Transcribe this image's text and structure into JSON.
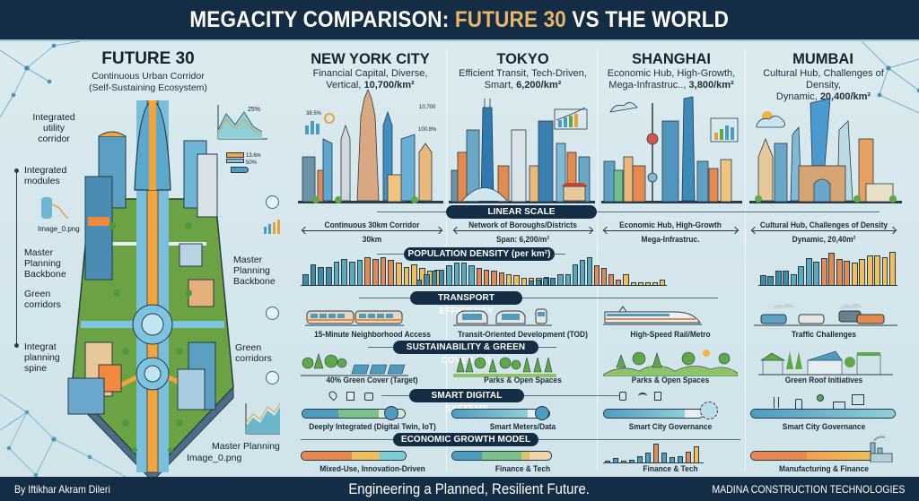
{
  "header": {
    "title_prefix": "MEGACITY COMPARISON: ",
    "title_accent": "FUTURE 30",
    "title_suffix": " VS THE WORLD"
  },
  "future30": {
    "title": "FUTURE 30",
    "subtitle_line1": "Continuous Urban Corridor",
    "subtitle_line2": "(Self-Sustaining Ecosystem)",
    "callouts": {
      "utility": [
        "Integrated",
        "utility",
        "corridor"
      ],
      "modules": [
        "Integrated",
        "modules"
      ],
      "image_label_1": "Image_0.png",
      "backbone_left": [
        "Master",
        "Planning",
        "Backbone"
      ],
      "green_left": [
        "Green",
        "corridors"
      ],
      "spine": [
        "Integrat",
        "planning",
        "spine"
      ],
      "backbone_right": [
        "Master",
        "Planning",
        "Backbone"
      ],
      "green_right": [
        "Green",
        "corridors"
      ],
      "master_planning": "Master Planning",
      "image_label_2": "Image_0.png"
    },
    "mini_chart_labels": {
      "pct": "25%",
      "dist": "13.6m",
      "val": "50%"
    }
  },
  "cities": [
    {
      "name": "NEW YORK CITY",
      "desc_line1": "Financial Capital, Diverse,",
      "desc_line2_text": "Vertical, ",
      "density": "10,700/km²",
      "annotations": [
        "38.5%",
        "10,700",
        "100.8%"
      ]
    },
    {
      "name": "TOKYO",
      "desc_line1": "Efficient Transit, Tech-Driven,",
      "desc_line2_text": "Smart, ",
      "density": "6,200/km²"
    },
    {
      "name": "SHANGHAI",
      "desc_line1": "Economic Hub, High-Growth,",
      "desc_line2_text": "Mega-Infrastruc.., ",
      "density": "3,800/km²"
    },
    {
      "name": "MUMBAI",
      "desc_line1": "Cultural Hub, Challenges of Density,",
      "desc_line2_text": "Dynamic, ",
      "density": "20,400/km²"
    }
  ],
  "sections": {
    "linear_scale": {
      "title": "LINEAR SCALE",
      "cells": [
        {
          "top": "Continuous 30km Corridor",
          "bottom": "30km"
        },
        {
          "top": "Network of Boroughs/Districts",
          "bottom": "Span: 6,200/m²"
        },
        {
          "top": "Economic Hub, High-Growth",
          "bottom": "Mega-Infrastruc."
        },
        {
          "top": "Cultural Hub, Challenges of Density",
          "bottom": "Dynamic, 20,40m²"
        }
      ]
    },
    "population_density": {
      "title": "POPULATION DENSITY (per km²)"
    },
    "transport": {
      "title": "TRANSPORT EFFICIENCY",
      "labels": [
        "15-Minute Neighborhood Access",
        "Transit-Oriented Development (TOD)",
        "High-Speed Rail/Metro",
        "Traffic Challenges"
      ]
    },
    "sustainability": {
      "title": "SUSTAINABILITY & GREEN COVER (%)",
      "labels": [
        "40% Green Cover (Target)",
        "Parks & Open Spaces",
        "Parks & Open Spaces",
        "Green Roof Initiatives"
      ]
    },
    "smart": {
      "title": "SMART DIGITAL SYSTEMS",
      "labels": [
        "Deeply Integrated (Digital Twin, IoT)",
        "Smart Meters/Data",
        "Smart City Governance",
        "Smart City Governance"
      ]
    },
    "economic": {
      "title": "ECONOMIC GROWTH MODEL",
      "labels": [
        "Mixed-Use, Innovation-Driven",
        "Finance & Tech",
        "Finance & Tech",
        "Manufacturing & Finance"
      ]
    }
  },
  "chart_data": {
    "type": "bar",
    "title": "POPULATION DENSITY (per km²)",
    "series": [
      {
        "name": "New York City",
        "values": [
          8,
          15,
          13,
          13,
          17,
          19,
          17,
          18,
          20,
          19,
          20,
          18,
          16,
          13,
          15,
          12,
          10,
          11
        ]
      },
      {
        "name": "Tokyo",
        "values": [
          4,
          8,
          10,
          11,
          14,
          16,
          16,
          14,
          12,
          11,
          10,
          9,
          8,
          7,
          5,
          5,
          5,
          6
        ]
      },
      {
        "name": "Shanghai",
        "values": [
          3,
          4,
          5,
          5,
          8,
          8,
          15,
          18,
          20,
          14,
          12,
          8,
          4,
          8,
          2,
          2,
          2,
          2,
          4
        ]
      },
      {
        "name": "Mumbai",
        "values": [
          11,
          10,
          16,
          16,
          12,
          20,
          29,
          25,
          29,
          35,
          28,
          26,
          24,
          28,
          32,
          32,
          30,
          36
        ]
      }
    ],
    "economic_bars_shanghai": [
      2,
      6,
      3,
      4,
      9,
      14,
      26,
      14,
      7,
      9,
      15,
      22
    ]
  },
  "footer": {
    "author": "By Iftikhar Akram Dileri",
    "tagline": "Engineering a Planned, Resilient Future.",
    "company": "MADINA CONSTRUCTION TECHNOLOGIES"
  },
  "colors": {
    "navy": "#142d44",
    "accent_gold": "#e7b469",
    "teal": "#3e8ca8",
    "orange": "#e58a4e",
    "yellow": "#f0bf5a",
    "green": "#5fa84a"
  }
}
